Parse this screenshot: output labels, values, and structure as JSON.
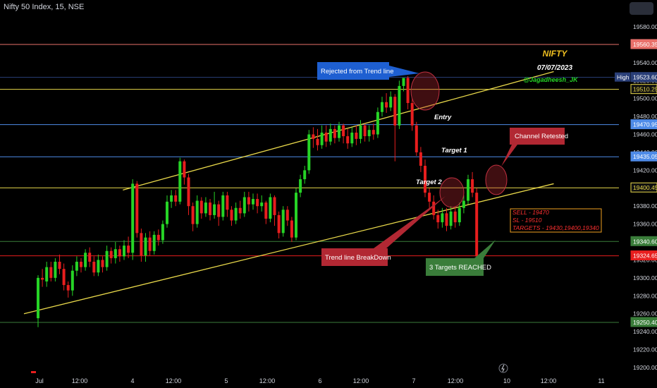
{
  "header": {
    "symbol": "Nifty 50 Index, 15, NSE"
  },
  "info": {
    "title": "NIFTY",
    "date": "07/07/2023",
    "handle": "@Jagadheesh_JK"
  },
  "colors": {
    "up": "#26d426",
    "down": "#e81e1e",
    "trend": "#e8d84a",
    "blue_callout": "#1e5fd1",
    "red_callout": "#b22833",
    "green_callout": "#3a7d3a",
    "signal": "#ff3030"
  },
  "callouts": {
    "rejected": "Rejected from Trend line",
    "retested": "Channel Retested",
    "breakdown": "Trend line BreakDown",
    "targets_reached": "3 Targets REACHED"
  },
  "annotations": {
    "entry": "Entry",
    "target1": "Target 1",
    "target2": "Target 2"
  },
  "signal_box": {
    "sell": "SELL - 19470",
    "sl": "SL - 19510",
    "targets": "TARGETS - 19430,19400,19340"
  },
  "chart_data": {
    "type": "candlestick",
    "y_ticks": [
      19200,
      19220,
      19240,
      19260,
      19280,
      19300,
      19320,
      19340,
      19360,
      19380,
      19400,
      19420,
      19440,
      19460,
      19480,
      19500,
      19520,
      19540,
      19560,
      19580
    ],
    "y_tick_labels": [
      "19200.00",
      "19220.00",
      "19240.00",
      "19260.00",
      "19280.00",
      "19300.00",
      "19320.00",
      "19340.00",
      "19360.00",
      "19380.00",
      "19400.00",
      "19420.00",
      "19440.00",
      "19460.00",
      "19480.00",
      "19500.00",
      "19520.00",
      "19540.00",
      "19560.00",
      "19580.00"
    ],
    "x_labels": [
      "Jul",
      "12:00",
      "4",
      "12:00",
      "5",
      "12:00",
      "6",
      "12:00",
      "7",
      "12:00",
      "10",
      "12:00",
      "11"
    ],
    "levels": [
      {
        "label": "19560.35",
        "value": 19560.35,
        "color": "#e8706a"
      },
      {
        "label": "19523.60",
        "value": 19523.6,
        "color": "#2a3f78",
        "tag": "High"
      },
      {
        "label": "19510.25",
        "value": 19510.25,
        "color": "#e8d84a"
      },
      {
        "label": "19470.95",
        "value": 19470.95,
        "color": "#4e8be8"
      },
      {
        "label": "19435.05",
        "value": 19435.05,
        "color": "#4e8be8"
      },
      {
        "label": "19400.45",
        "value": 19400.45,
        "color": "#e8d84a"
      },
      {
        "label": "19340.60",
        "value": 19340.6,
        "color": "#3a7d3a"
      },
      {
        "label": "19324.65",
        "value": 19324.65,
        "color": "#e81e1e"
      },
      {
        "label": "19250.40",
        "value": 19250.4,
        "color": "#3a7d3a"
      }
    ],
    "trend_lines": [
      {
        "from": [
          0,
          19260
        ],
        "to": [
          115,
          19405
        ]
      },
      {
        "from": [
          23,
          19398
        ],
        "to": [
          115,
          19530
        ]
      }
    ],
    "candles": [
      [
        19255,
        19300,
        19245,
        19303
      ],
      [
        19300,
        19298,
        19290,
        19310
      ],
      [
        19296,
        19312,
        19290,
        19318
      ],
      [
        19312,
        19300,
        19296,
        19318
      ],
      [
        19300,
        19318,
        19296,
        19322
      ],
      [
        19318,
        19310,
        19304,
        19326
      ],
      [
        19310,
        19292,
        19286,
        19316
      ],
      [
        19292,
        19286,
        19278,
        19296
      ],
      [
        19286,
        19308,
        19280,
        19314
      ],
      [
        19308,
        19318,
        19302,
        19324
      ],
      [
        19318,
        19312,
        19306,
        19322
      ],
      [
        19312,
        19328,
        19308,
        19332
      ],
      [
        19328,
        19318,
        19312,
        19334
      ],
      [
        19318,
        19306,
        19302,
        19324
      ],
      [
        19306,
        19320,
        19302,
        19326
      ],
      [
        19320,
        19312,
        19306,
        19324
      ],
      [
        19312,
        19330,
        19308,
        19336
      ],
      [
        19330,
        19322,
        19316,
        19334
      ],
      [
        19322,
        19332,
        19316,
        19340
      ],
      [
        19332,
        19324,
        19318,
        19336
      ],
      [
        19324,
        19336,
        19320,
        19342
      ],
      [
        19336,
        19328,
        19322,
        19346
      ],
      [
        19328,
        19405,
        19320,
        19410
      ],
      [
        19405,
        19350,
        19345,
        19408
      ],
      [
        19350,
        19325,
        19318,
        19355
      ],
      [
        19325,
        19345,
        19318,
        19350
      ],
      [
        19345,
        19330,
        19325,
        19352
      ],
      [
        19330,
        19348,
        19326,
        19352
      ],
      [
        19348,
        19342,
        19336,
        19354
      ],
      [
        19342,
        19360,
        19338,
        19364
      ],
      [
        19360,
        19385,
        19356,
        19392
      ],
      [
        19385,
        19392,
        19378,
        19398
      ],
      [
        19392,
        19385,
        19380,
        19398
      ],
      [
        19385,
        19430,
        19382,
        19434
      ],
      [
        19430,
        19412,
        19404,
        19432
      ],
      [
        19412,
        19380,
        19370,
        19416
      ],
      [
        19380,
        19360,
        19352,
        19384
      ],
      [
        19360,
        19386,
        19356,
        19392
      ],
      [
        19386,
        19372,
        19366,
        19390
      ],
      [
        19372,
        19384,
        19368,
        19390
      ],
      [
        19384,
        19370,
        19364,
        19388
      ],
      [
        19370,
        19382,
        19366,
        19396
      ],
      [
        19382,
        19368,
        19358,
        19386
      ],
      [
        19368,
        19392,
        19364,
        19396
      ],
      [
        19392,
        19376,
        19368,
        19396
      ],
      [
        19376,
        19364,
        19358,
        19380
      ],
      [
        19364,
        19378,
        19360,
        19384
      ],
      [
        19378,
        19372,
        19366,
        19386
      ],
      [
        19372,
        19390,
        19368,
        19396
      ],
      [
        19390,
        19382,
        19374,
        19396
      ],
      [
        19382,
        19388,
        19376,
        19394
      ],
      [
        19388,
        19380,
        19372,
        19394
      ],
      [
        19380,
        19384,
        19374,
        19392
      ],
      [
        19384,
        19366,
        19360,
        19386
      ],
      [
        19366,
        19390,
        19362,
        19394
      ],
      [
        19390,
        19370,
        19358,
        19392
      ],
      [
        19370,
        19350,
        19344,
        19374
      ],
      [
        19350,
        19376,
        19346,
        19380
      ],
      [
        19376,
        19364,
        19358,
        19380
      ],
      [
        19364,
        19345,
        19340,
        19368
      ],
      [
        19345,
        19395,
        19342,
        19400
      ],
      [
        19395,
        19410,
        19390,
        19415
      ],
      [
        19410,
        19420,
        19405,
        19425
      ],
      [
        19420,
        19460,
        19416,
        19465
      ],
      [
        19460,
        19455,
        19445,
        19468
      ],
      [
        19455,
        19448,
        19442,
        19466
      ],
      [
        19448,
        19462,
        19444,
        19470
      ],
      [
        19462,
        19452,
        19446,
        19470
      ],
      [
        19452,
        19466,
        19448,
        19472
      ],
      [
        19466,
        19456,
        19450,
        19470
      ],
      [
        19456,
        19470,
        19452,
        19474
      ],
      [
        19470,
        19458,
        19450,
        19472
      ],
      [
        19458,
        19450,
        19444,
        19466
      ],
      [
        19450,
        19462,
        19446,
        19468
      ],
      [
        19462,
        19455,
        19448,
        19470
      ],
      [
        19455,
        19470,
        19450,
        19476
      ],
      [
        19470,
        19458,
        19452,
        19472
      ],
      [
        19458,
        19465,
        19452,
        19470
      ],
      [
        19465,
        19460,
        19454,
        19472
      ],
      [
        19460,
        19485,
        19456,
        19490
      ],
      [
        19485,
        19496,
        19480,
        19502
      ],
      [
        19496,
        19490,
        19484,
        19506
      ],
      [
        19490,
        19502,
        19486,
        19508
      ],
      [
        19502,
        19470,
        19430,
        19505
      ],
      [
        19470,
        19514,
        19466,
        19520
      ],
      [
        19514,
        19523,
        19508,
        19523
      ],
      [
        19523,
        19495,
        19488,
        19525
      ],
      [
        19495,
        19470,
        19464,
        19500
      ],
      [
        19470,
        19440,
        19436,
        19474
      ],
      [
        19440,
        19425,
        19418,
        19446
      ],
      [
        19425,
        19395,
        19390,
        19432
      ],
      [
        19395,
        19385,
        19378,
        19400
      ],
      [
        19385,
        19370,
        19365,
        19392
      ],
      [
        19370,
        19362,
        19355,
        19376
      ],
      [
        19362,
        19372,
        19356,
        19378
      ],
      [
        19372,
        19358,
        19352,
        19378
      ],
      [
        19358,
        19374,
        19354,
        19380
      ],
      [
        19374,
        19362,
        19356,
        19380
      ],
      [
        19362,
        19378,
        19358,
        19384
      ],
      [
        19378,
        19386,
        19372,
        19392
      ],
      [
        19386,
        19410,
        19382,
        19415
      ],
      [
        19410,
        19395,
        19390,
        19418
      ],
      [
        19395,
        19324,
        19318,
        19400
      ],
      [
        19324,
        19320,
        19310,
        19328
      ]
    ]
  }
}
